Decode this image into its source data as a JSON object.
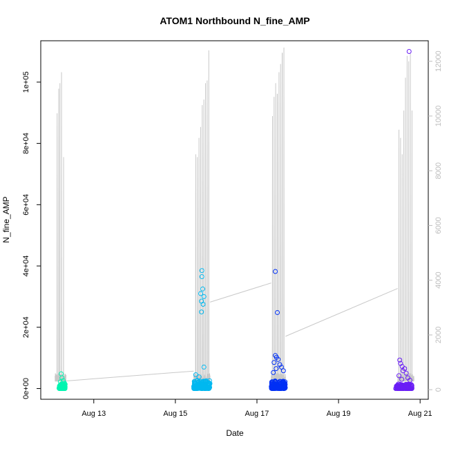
{
  "chart_data": {
    "type": "scatter",
    "title": "ATOM1 Northbound N_fine_AMP",
    "xlabel": "Date",
    "ylabel": "N_fine_AMP",
    "x_ticks": [
      "Aug 13",
      "Aug 15",
      "Aug 17",
      "Aug 19",
      "Aug 21"
    ],
    "x_tick_days": [
      13,
      15,
      17,
      19,
      21
    ],
    "xlim_days": [
      11.7,
      21.2
    ],
    "y_ticks": [
      0,
      20000,
      40000,
      60000,
      80000,
      100000
    ],
    "y_tick_labels": [
      "0e+00",
      "2e+04",
      "4e+04",
      "6e+04",
      "8e+04",
      "1e+05"
    ],
    "ylim": [
      -3500,
      113500
    ],
    "y2_ticks": [
      0,
      2000,
      4000,
      6000,
      8000,
      10000,
      12000
    ],
    "y2_tick_labels": [
      "0",
      "2000",
      "4000",
      "6000",
      "8000",
      "10000",
      "12000"
    ],
    "y2lim": [
      -350,
      12750
    ],
    "grid": false,
    "colors": {
      "line_series": "#c8c8c8",
      "cluster_1": "#00f5b0",
      "cluster_2": "#00b8f0",
      "cluster_3": "#0030f5",
      "cluster_4": "#6a1ef5"
    },
    "series": [
      {
        "marker": "open-circle",
        "clusters": [
          {
            "color": "cluster_1",
            "x_start": 12.15,
            "x_end": 12.3,
            "dense_y_max": 1500,
            "points": [
              [
                12.2,
                4800
              ],
              [
                12.22,
                3500
              ],
              [
                12.25,
                2600
              ],
              [
                12.18,
                2200
              ],
              [
                12.28,
                1800
              ]
            ]
          },
          {
            "color": "cluster_2",
            "x_start": 15.45,
            "x_end": 15.85,
            "dense_y_max": 2800,
            "points": [
              [
                15.65,
                38500
              ],
              [
                15.65,
                36500
              ],
              [
                15.67,
                32500
              ],
              [
                15.62,
                31000
              ],
              [
                15.7,
                30000
              ],
              [
                15.64,
                28500
              ],
              [
                15.68,
                27500
              ],
              [
                15.64,
                25000
              ],
              [
                15.7,
                7000
              ],
              [
                15.5,
                4500
              ],
              [
                15.58,
                3800
              ]
            ]
          },
          {
            "color": "cluster_3",
            "x_start": 17.35,
            "x_end": 17.7,
            "dense_y_max": 2500,
            "points": [
              [
                17.45,
                38200
              ],
              [
                17.5,
                24800
              ],
              [
                17.45,
                10800
              ],
              [
                17.48,
                10200
              ],
              [
                17.52,
                9500
              ],
              [
                17.42,
                8500
              ],
              [
                17.56,
                7800
              ],
              [
                17.6,
                7000
              ],
              [
                17.47,
                6500
              ],
              [
                17.65,
                5800
              ],
              [
                17.4,
                5200
              ]
            ]
          },
          {
            "color": "cluster_4",
            "x_start": 20.4,
            "x_end": 20.8,
            "dense_y_max": 1500,
            "points": [
              [
                20.73,
                110000
              ],
              [
                20.5,
                9300
              ],
              [
                20.52,
                8200
              ],
              [
                20.56,
                7200
              ],
              [
                20.62,
                6500
              ],
              [
                20.58,
                5800
              ],
              [
                20.66,
                5000
              ],
              [
                20.48,
                4200
              ],
              [
                20.7,
                3500
              ],
              [
                20.55,
                3000
              ],
              [
                20.75,
                2700
              ]
            ]
          }
        ]
      },
      {
        "axis": "right",
        "line": true,
        "bursts": [
          {
            "x_start": 12.05,
            "x_end": 12.32,
            "spikes": [
              [
                12.1,
                10100
              ],
              [
                12.14,
                11000
              ],
              [
                12.17,
                11200
              ],
              [
                12.21,
                11600
              ],
              [
                12.26,
                8500
              ]
            ],
            "base": 300
          },
          {
            "x_start": 15.45,
            "x_end": 15.85,
            "spikes": [
              [
                15.5,
                8600
              ],
              [
                15.54,
                8500
              ],
              [
                15.58,
                9200
              ],
              [
                15.62,
                9600
              ],
              [
                15.66,
                10400
              ],
              [
                15.7,
                10600
              ],
              [
                15.74,
                11200
              ],
              [
                15.78,
                11300
              ],
              [
                15.82,
                12400
              ]
            ],
            "base": 300
          },
          {
            "x_start": 17.35,
            "x_end": 17.7,
            "spikes": [
              [
                17.38,
                10000
              ],
              [
                17.42,
                10700
              ],
              [
                17.46,
                11200
              ],
              [
                17.5,
                10800
              ],
              [
                17.54,
                11600
              ],
              [
                17.58,
                11900
              ],
              [
                17.62,
                12300
              ],
              [
                17.66,
                12500
              ]
            ],
            "base": 300
          },
          {
            "x_start": 20.45,
            "x_end": 20.85,
            "spikes": [
              [
                20.48,
                9500
              ],
              [
                20.52,
                9200
              ],
              [
                20.56,
                8600
              ],
              [
                20.6,
                10200
              ],
              [
                20.64,
                11400
              ],
              [
                20.68,
                12200
              ],
              [
                20.72,
                12000
              ],
              [
                20.76,
                12300
              ],
              [
                20.8,
                10200
              ]
            ],
            "base": 300
          }
        ],
        "connectors": [
          [
            [
              12.32,
              320
            ],
            [
              15.45,
              680
            ]
          ],
          [
            [
              15.85,
              3200
            ],
            [
              17.35,
              3900
            ]
          ],
          [
            [
              17.7,
              1950
            ],
            [
              20.45,
              3700
            ]
          ]
        ]
      }
    ]
  }
}
